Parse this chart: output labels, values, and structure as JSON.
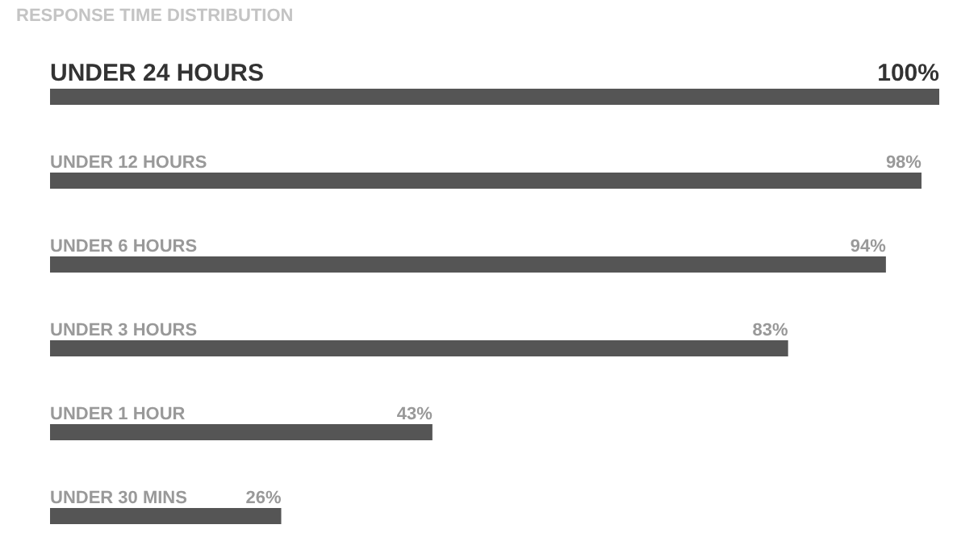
{
  "chart_data": {
    "type": "bar",
    "orientation": "horizontal",
    "title": "RESPONSE TIME DISTRIBUTION",
    "categories": [
      "UNDER 24 HOURS",
      "UNDER 12 HOURS",
      "UNDER 6 HOURS",
      "UNDER 3 HOURS",
      "UNDER 1 HOUR",
      "UNDER 30 MINS"
    ],
    "values": [
      100,
      98,
      94,
      83,
      43,
      26
    ],
    "value_labels": [
      "100%",
      "98%",
      "94%",
      "83%",
      "43%",
      "26%"
    ],
    "color": "#555555"
  }
}
